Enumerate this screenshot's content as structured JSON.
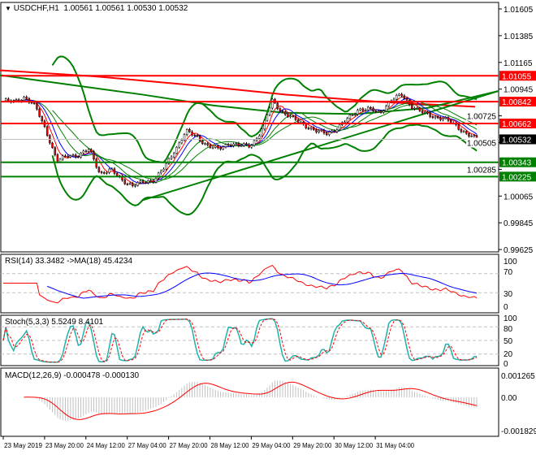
{
  "header": {
    "symbol": "USDCHF,H1",
    "open": "1.00561",
    "high": "1.00561",
    "low": "1.00530",
    "close": "1.00532"
  },
  "colors": {
    "bull": "#000000",
    "bear": "#ff0000",
    "bands": "#008000",
    "level_red": "#ff0000",
    "level_green": "#008000",
    "rsi": "#ff0000",
    "rsi_ma": "#0000ff",
    "stoch_main": "#20b2aa",
    "stoch_signal": "#ff0000",
    "macd_hist": "#c0c0c0",
    "macd_signal": "#ff0000"
  },
  "price_axis": {
    "ticks": [
      "1.01605",
      "1.01385",
      "1.01165",
      "1.00945",
      "1.00725",
      "1.00505",
      "1.00285",
      "1.00065",
      "0.99845",
      "0.99625"
    ]
  },
  "levels": [
    {
      "price": "1.01055",
      "color": "#ff0000"
    },
    {
      "price": "1.00842",
      "color": "#ff0000"
    },
    {
      "price": "1.00662",
      "color": "#ff0000"
    },
    {
      "price": "1.00343",
      "color": "#008000"
    },
    {
      "price": "1.00225",
      "color": "#008000"
    }
  ],
  "current_price": "1.00532",
  "time_axis": [
    "23 May 2019",
    "23 May 20:00",
    "24 May 12:00",
    "27 May 04:00",
    "27 May 20:00",
    "28 May 12:00",
    "29 May 04:00",
    "29 May 20:00",
    "30 May 12:00",
    "31 May 04:00"
  ],
  "rsi": {
    "label": "RSI(14) 33.3482  ->MA(18) 45.4234",
    "ticks": [
      "100",
      "70",
      "30",
      "0"
    ]
  },
  "stoch": {
    "label": "Stoch(5,3,3) 5.5249 8.4101",
    "ticks": [
      "100",
      "80",
      "50",
      "20",
      "0"
    ]
  },
  "macd": {
    "label": "MACD(12,26,9) -0.000478 -0.000130",
    "ticks": [
      "0.001265",
      "0.00",
      "-0.001829"
    ]
  },
  "chart_data": {
    "type": "candlestick",
    "symbol": "USDCHF",
    "timeframe": "H1",
    "ylim": [
      0.99625,
      1.01605
    ],
    "close_knots": [
      1.0085,
      1.0084,
      1.0088,
      1.008,
      1.006,
      1.0035,
      1.004,
      1.004,
      1.0045,
      1.0025,
      1.0028,
      1.002,
      1.0015,
      1.0018,
      1.002,
      1.003,
      1.0045,
      1.006,
      1.0055,
      1.0048,
      1.0045,
      1.005,
      1.0048,
      1.0048,
      1.006,
      1.0085,
      1.0075,
      1.007,
      1.0065,
      1.006,
      1.0058,
      1.0062,
      1.007,
      1.0078,
      1.0078,
      1.0075,
      1.0085,
      1.009,
      1.008,
      1.0075,
      1.0072,
      1.007,
      1.0065,
      1.0058,
      1.00532
    ],
    "trendline_rising": [
      1.0003,
      1.0093
    ],
    "long_ma_red": [
      1.011,
      1.0105,
      1.0098,
      1.009,
      1.0084,
      1.008
    ],
    "long_ma_green": [
      1.0106,
      1.0098,
      1.009,
      1.0081,
      1.0075,
      1.0074,
      1.0079,
      1.0093
    ]
  }
}
